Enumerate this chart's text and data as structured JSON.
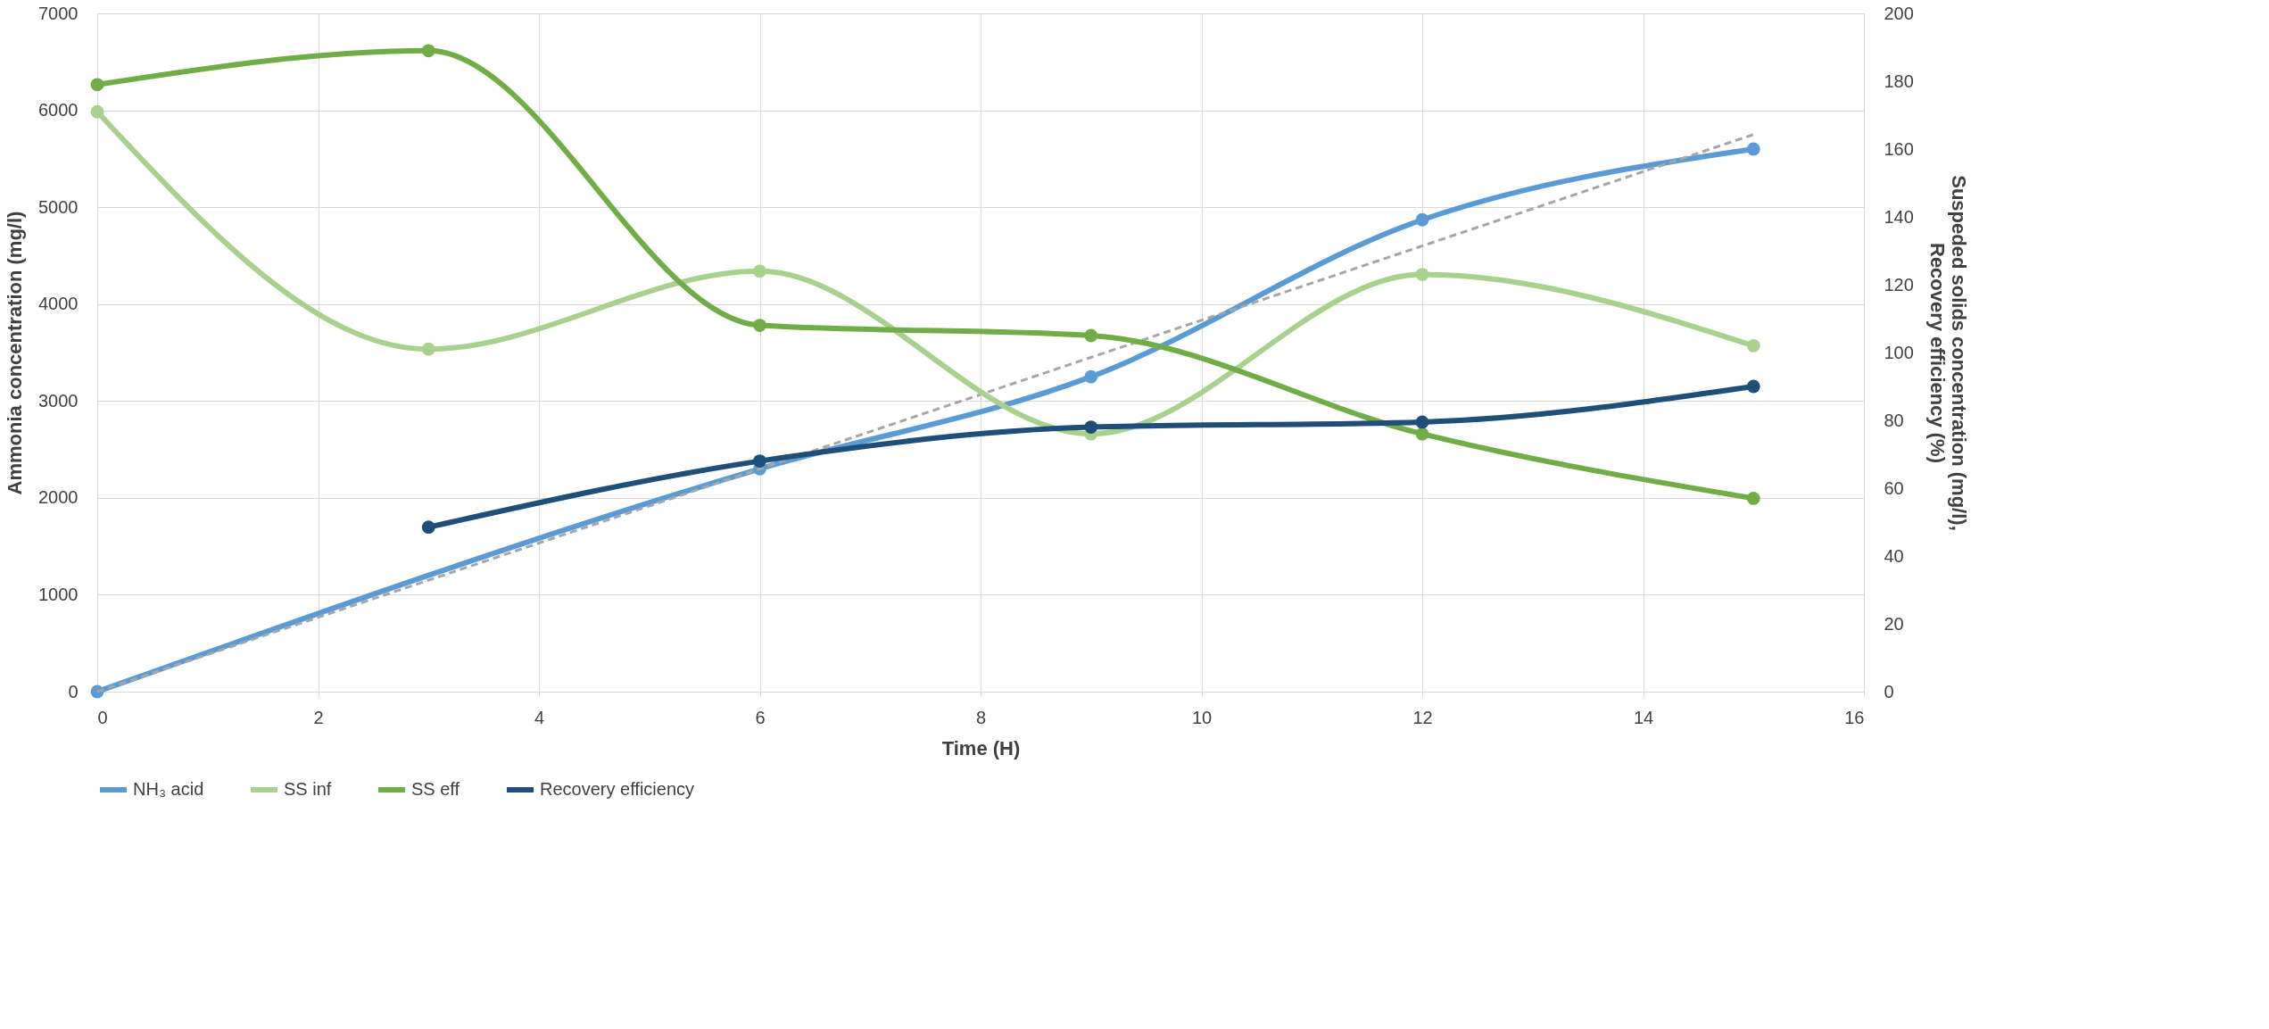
{
  "chart_data": {
    "type": "line",
    "xlabel": "Time (H)",
    "ylabel": "Ammonia concentration (mg/l)",
    "y2label": "Suspeded solids concentration (mg/l),\nRecovery efficiency (%)",
    "x": [
      0,
      3,
      6,
      9,
      12,
      15
    ],
    "series": [
      {
        "name": "NH₃ acid",
        "color": "#5b9bd5",
        "values": [
          0,
          null,
          2300,
          3250,
          4870,
          5600
        ]
      },
      {
        "name": "SS inf",
        "color": "#a9d18e",
        "axis": "y2",
        "values": [
          171,
          101,
          124,
          76,
          123,
          102
        ]
      },
      {
        "name": "SS eff",
        "color": "#70ad47",
        "axis": "y2",
        "values": [
          179,
          189,
          108,
          105,
          76,
          57
        ]
      },
      {
        "name": "Recovery efficiency",
        "color": "#1f4e79",
        "axis": "y2",
        "x": [
          3,
          6,
          9,
          12,
          15
        ],
        "values": [
          48.5,
          68,
          78,
          79.5,
          90
        ]
      },
      {
        "type": "line",
        "color": "#a6a6a6",
        "line_style": "dashed",
        "marker": "none",
        "x": [
          0,
          15
        ],
        "values": [
          0,
          5750
        ]
      }
    ],
    "xlim": [
      0,
      16
    ],
    "xticks": [
      0,
      2,
      4,
      6,
      8,
      10,
      12,
      14,
      16
    ],
    "ylim": [
      0,
      7000
    ],
    "yticks": [
      0,
      1000,
      2000,
      3000,
      4000,
      5000,
      6000,
      7000
    ],
    "y2lim": [
      0,
      200
    ],
    "y2ticks": [
      0,
      20,
      40,
      60,
      80,
      100,
      120,
      140,
      160,
      180,
      200
    ],
    "grid": true,
    "legend": "bottom",
    "marker": "circle",
    "line_style": "solid"
  }
}
